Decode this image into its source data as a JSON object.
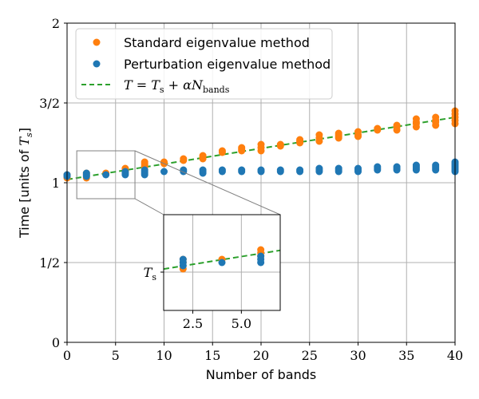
{
  "chart_data": {
    "type": "scatter",
    "xlabel": "Number of bands",
    "ylabel_prefix": "Time [units of ",
    "ylabel_symbol": "T",
    "ylabel_sub": "s",
    "ylabel_suffix": "]",
    "xlim": [
      0,
      40
    ],
    "ylim": [
      0,
      2
    ],
    "x_ticks": [
      0,
      5,
      10,
      15,
      20,
      25,
      30,
      35,
      40
    ],
    "y_ticks": [
      {
        "value": 0,
        "label": "0"
      },
      {
        "value": 0.5,
        "label": "1/2"
      },
      {
        "value": 1,
        "label": "1"
      },
      {
        "value": 1.5,
        "label": "3/2"
      },
      {
        "value": 2,
        "label": "2"
      }
    ],
    "grid": true,
    "legend_position": "upper-left",
    "series": [
      {
        "name": "Standard eigenvalue method",
        "color": "#ff7f0e",
        "points": [
          [
            0,
            1.03
          ],
          [
            0,
            1.05
          ],
          [
            2,
            1.03
          ],
          [
            2,
            1.05
          ],
          [
            2,
            1.06
          ],
          [
            4,
            1.06
          ],
          [
            6,
            1.07
          ],
          [
            6,
            1.08
          ],
          [
            6,
            1.09
          ],
          [
            8,
            1.1
          ],
          [
            8,
            1.11
          ],
          [
            8,
            1.12
          ],
          [
            8,
            1.13
          ],
          [
            10,
            1.12
          ],
          [
            10,
            1.13
          ],
          [
            12,
            1.14
          ],
          [
            12,
            1.15
          ],
          [
            14,
            1.15
          ],
          [
            14,
            1.16
          ],
          [
            14,
            1.17
          ],
          [
            16,
            1.19
          ],
          [
            16,
            1.2
          ],
          [
            18,
            1.2
          ],
          [
            18,
            1.21
          ],
          [
            18,
            1.22
          ],
          [
            20,
            1.2
          ],
          [
            20,
            1.22
          ],
          [
            20,
            1.24
          ],
          [
            22,
            1.23
          ],
          [
            22,
            1.24
          ],
          [
            24,
            1.25
          ],
          [
            24,
            1.26
          ],
          [
            24,
            1.27
          ],
          [
            26,
            1.26
          ],
          [
            26,
            1.28
          ],
          [
            26,
            1.3
          ],
          [
            28,
            1.28
          ],
          [
            28,
            1.29
          ],
          [
            28,
            1.3
          ],
          [
            28,
            1.31
          ],
          [
            30,
            1.29
          ],
          [
            30,
            1.3
          ],
          [
            30,
            1.32
          ],
          [
            32,
            1.33
          ],
          [
            32,
            1.34
          ],
          [
            34,
            1.33
          ],
          [
            34,
            1.35
          ],
          [
            34,
            1.36
          ],
          [
            36,
            1.35
          ],
          [
            36,
            1.37
          ],
          [
            36,
            1.38
          ],
          [
            36,
            1.4
          ],
          [
            38,
            1.36
          ],
          [
            38,
            1.38
          ],
          [
            38,
            1.39
          ],
          [
            38,
            1.41
          ],
          [
            40,
            1.37
          ],
          [
            40,
            1.39
          ],
          [
            40,
            1.41
          ],
          [
            40,
            1.43
          ],
          [
            40,
            1.45
          ]
        ]
      },
      {
        "name": "Perturbation eigenvalue method",
        "color": "#1f77b4",
        "points": [
          [
            0,
            1.04
          ],
          [
            0,
            1.05
          ],
          [
            2,
            1.04
          ],
          [
            2,
            1.05
          ],
          [
            2,
            1.06
          ],
          [
            4,
            1.05
          ],
          [
            6,
            1.05
          ],
          [
            6,
            1.06
          ],
          [
            6,
            1.07
          ],
          [
            8,
            1.05
          ],
          [
            8,
            1.06
          ],
          [
            8,
            1.07
          ],
          [
            8,
            1.08
          ],
          [
            10,
            1.07
          ],
          [
            12,
            1.07
          ],
          [
            12,
            1.08
          ],
          [
            14,
            1.06
          ],
          [
            14,
            1.07
          ],
          [
            14,
            1.08
          ],
          [
            16,
            1.07
          ],
          [
            16,
            1.08
          ],
          [
            18,
            1.07
          ],
          [
            18,
            1.08
          ],
          [
            20,
            1.07
          ],
          [
            20,
            1.08
          ],
          [
            22,
            1.07
          ],
          [
            22,
            1.08
          ],
          [
            24,
            1.07
          ],
          [
            24,
            1.08
          ],
          [
            26,
            1.07
          ],
          [
            26,
            1.08
          ],
          [
            26,
            1.09
          ],
          [
            28,
            1.07
          ],
          [
            28,
            1.08
          ],
          [
            28,
            1.09
          ],
          [
            30,
            1.07
          ],
          [
            30,
            1.08
          ],
          [
            30,
            1.09
          ],
          [
            32,
            1.08
          ],
          [
            32,
            1.09
          ],
          [
            32,
            1.1
          ],
          [
            34,
            1.08
          ],
          [
            34,
            1.09
          ],
          [
            34,
            1.1
          ],
          [
            36,
            1.08
          ],
          [
            36,
            1.09
          ],
          [
            36,
            1.1
          ],
          [
            36,
            1.11
          ],
          [
            38,
            1.08
          ],
          [
            38,
            1.09
          ],
          [
            38,
            1.1
          ],
          [
            38,
            1.11
          ],
          [
            40,
            1.07
          ],
          [
            40,
            1.08
          ],
          [
            40,
            1.09
          ],
          [
            40,
            1.1
          ],
          [
            40,
            1.11
          ],
          [
            40,
            1.12
          ],
          [
            40,
            1.13
          ]
        ]
      }
    ],
    "fit_line": {
      "name": "T = Ts + αNbands",
      "legend_parts": {
        "lhs": "T",
        "eq": " = ",
        "t": "T",
        "s": "s",
        "plus": " + ",
        "alpha": "α",
        "n": "N",
        "bands": "bands"
      },
      "color": "#2ca02c",
      "style": "dashed",
      "start": [
        0,
        1.02
      ],
      "end": [
        40,
        1.41
      ]
    },
    "inset": {
      "zoom_region": {
        "xlim": [
          1,
          7
        ],
        "ylim": [
          0.9,
          1.2
        ]
      },
      "x_ticks": [
        {
          "value": 2.5,
          "label": "2.5"
        },
        {
          "value": 5.0,
          "label": "5.0"
        }
      ],
      "y_tick": {
        "value": 1.02,
        "label_symbol": "T",
        "label_sub": "s"
      }
    }
  }
}
